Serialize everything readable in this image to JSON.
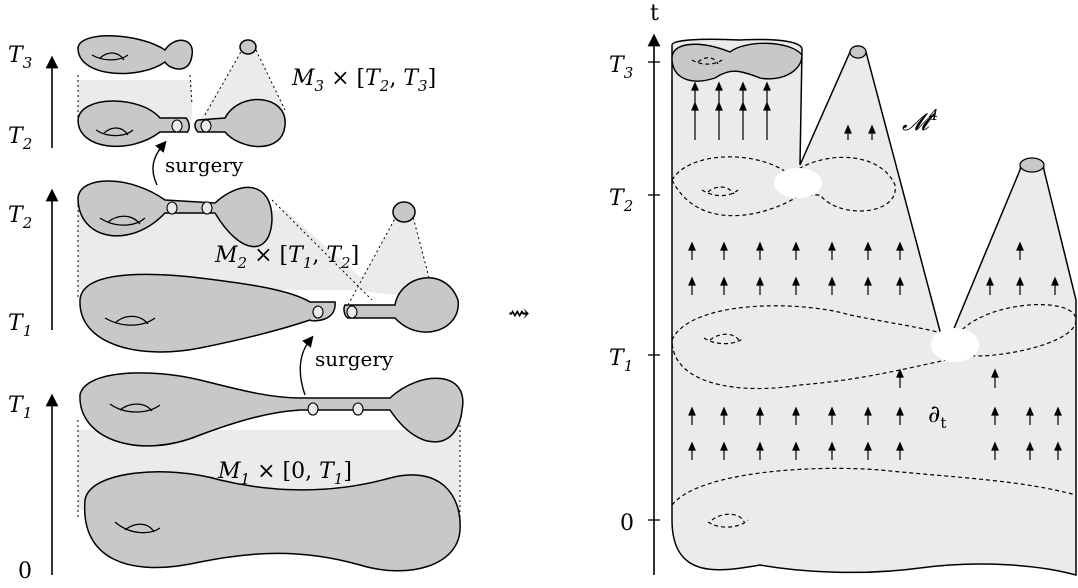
{
  "left": {
    "axis_labels": {
      "top_T": "T",
      "top_sub": "3",
      "t2a_T": "T",
      "t2a_sub": "2",
      "t2b_T": "T",
      "t2b_sub": "2",
      "t1a_T": "T",
      "t1a_sub": "1",
      "t1b_T": "T",
      "t1b_sub": "1",
      "zero": "0"
    },
    "surgery_labels": [
      "surgery",
      "surgery"
    ],
    "product_labels": {
      "m3": {
        "M": "M",
        "sub": "3",
        "rest_open": " × [",
        "T": "T",
        "a_sub": "2",
        "comma": ", ",
        "T2": "T",
        "b_sub": "3",
        "close": "]"
      },
      "m2": {
        "M": "M",
        "sub": "2",
        "rest_open": " × [",
        "T": "T",
        "a_sub": "1",
        "comma": ", ",
        "T2": "T",
        "b_sub": "2",
        "close": "]"
      },
      "m1": {
        "M": "M",
        "sub": "1",
        "rest_open": " × [0, ",
        "T": "T",
        "a_sub": "1",
        "close": "]"
      }
    }
  },
  "arrow_symbol": "⇝",
  "right": {
    "axis_t": "t",
    "ticks": {
      "t3_T": "T",
      "t3_sub": "3",
      "t2_T": "T",
      "t2_sub": "2",
      "t1_T": "T",
      "t1_sub": "1",
      "zero": "0"
    },
    "manifold_label": "𝓜",
    "manifold_sup": "4",
    "boundary_label": "∂",
    "boundary_sub": "t"
  },
  "colors": {
    "fill_dark": "#c8c8c8",
    "fill_light": "#ebebeb",
    "stroke": "#000000"
  }
}
